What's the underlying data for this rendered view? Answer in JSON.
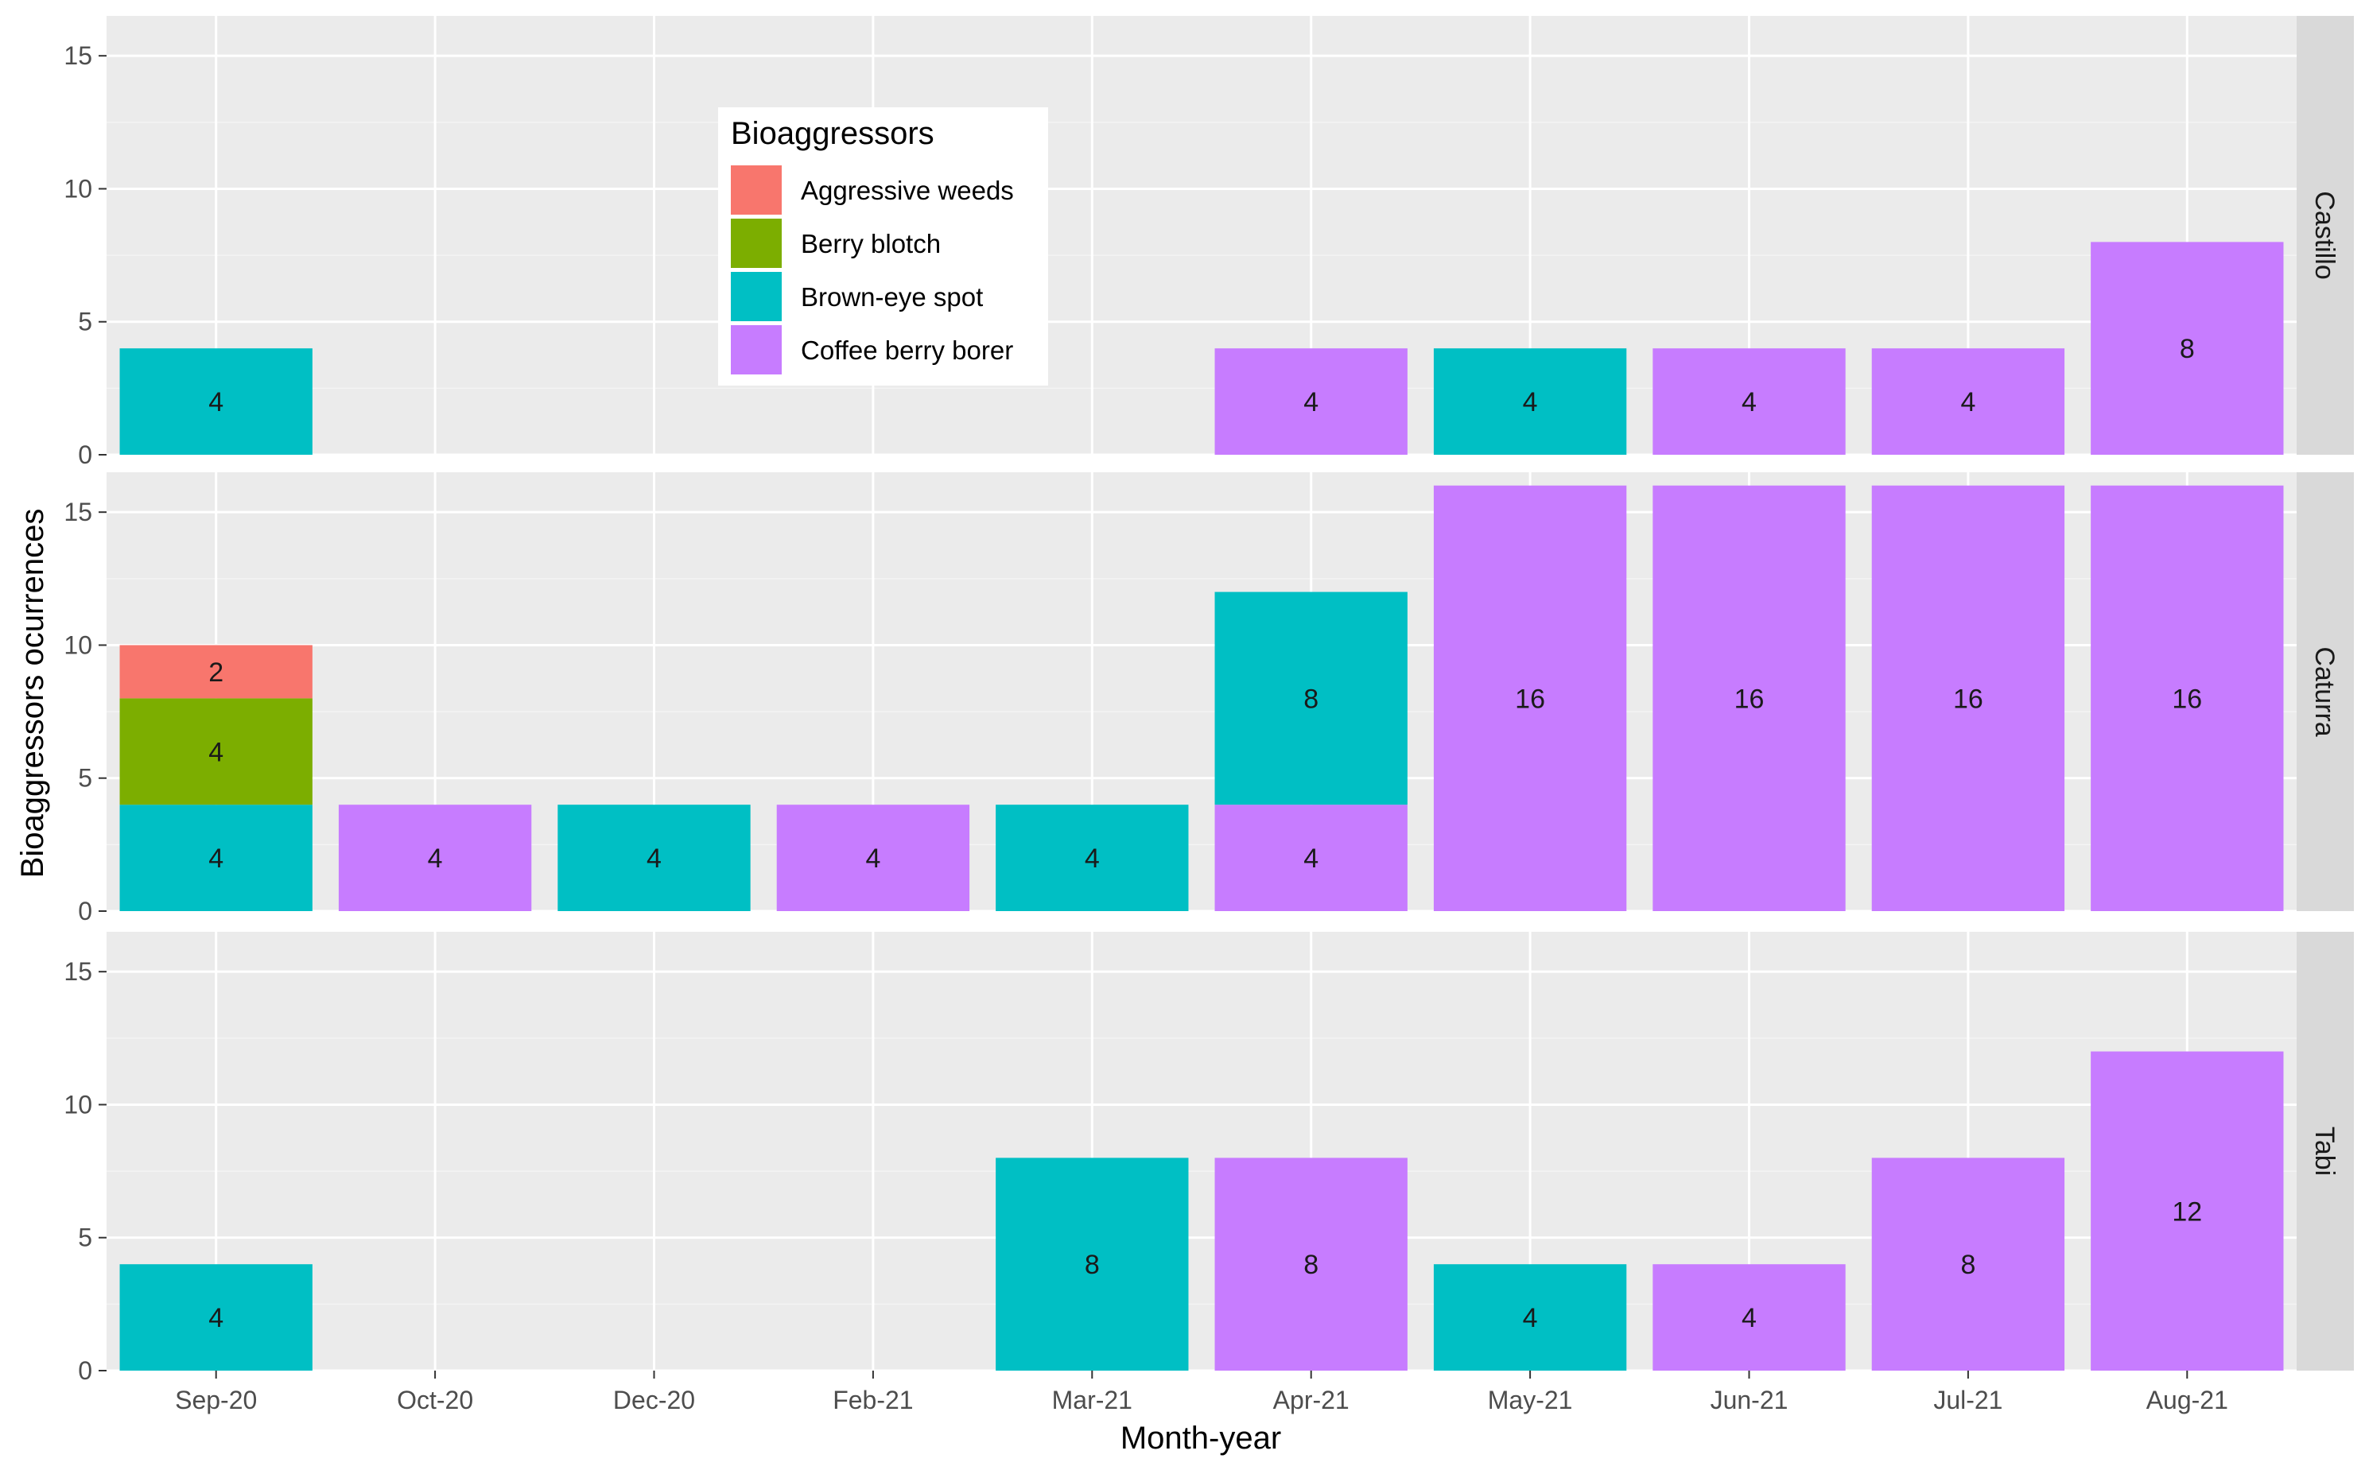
{
  "chart_data": {
    "type": "bar",
    "stacked": true,
    "facet_by": "variety",
    "xlabel": "Month-year",
    "ylabel": "Bioaggressors ocurrences",
    "ylim": [
      0,
      16.5
    ],
    "y_ticks": [
      0,
      5,
      10,
      15
    ],
    "categories": [
      "Sep-20",
      "Oct-20",
      "Dec-20",
      "Feb-21",
      "Mar-21",
      "Apr-21",
      "May-21",
      "Jun-21",
      "Jul-21",
      "Aug-21"
    ],
    "legend": {
      "title": "Bioaggressors",
      "placement": "inside-top-left of first panel",
      "entries": [
        {
          "name": "Aggressive weeds",
          "color": "#F8766D"
        },
        {
          "name": "Berry blotch",
          "color": "#7CAE00"
        },
        {
          "name": "Brown-eye spot",
          "color": "#00BFC4"
        },
        {
          "name": "Coffee berry borer",
          "color": "#C77CFF"
        }
      ]
    },
    "panels": [
      {
        "label": "Castillo",
        "bars": [
          {
            "category": "Sep-20",
            "segments": [
              {
                "series": "Brown-eye spot",
                "value": 4
              }
            ]
          },
          {
            "category": "Apr-21",
            "segments": [
              {
                "series": "Coffee berry borer",
                "value": 4
              }
            ]
          },
          {
            "category": "May-21",
            "segments": [
              {
                "series": "Brown-eye spot",
                "value": 4
              }
            ]
          },
          {
            "category": "Jun-21",
            "segments": [
              {
                "series": "Coffee berry borer",
                "value": 4
              }
            ]
          },
          {
            "category": "Jul-21",
            "segments": [
              {
                "series": "Coffee berry borer",
                "value": 4
              }
            ]
          },
          {
            "category": "Aug-21",
            "segments": [
              {
                "series": "Coffee berry borer",
                "value": 8
              }
            ]
          }
        ]
      },
      {
        "label": "Caturra",
        "bars": [
          {
            "category": "Sep-20",
            "segments": [
              {
                "series": "Brown-eye spot",
                "value": 4
              },
              {
                "series": "Berry blotch",
                "value": 4
              },
              {
                "series": "Aggressive weeds",
                "value": 2
              }
            ]
          },
          {
            "category": "Oct-20",
            "segments": [
              {
                "series": "Coffee berry borer",
                "value": 4
              }
            ]
          },
          {
            "category": "Dec-20",
            "segments": [
              {
                "series": "Brown-eye spot",
                "value": 4
              }
            ]
          },
          {
            "category": "Feb-21",
            "segments": [
              {
                "series": "Coffee berry borer",
                "value": 4
              }
            ]
          },
          {
            "category": "Mar-21",
            "segments": [
              {
                "series": "Brown-eye spot",
                "value": 4
              }
            ]
          },
          {
            "category": "Apr-21",
            "segments": [
              {
                "series": "Coffee berry borer",
                "value": 4
              },
              {
                "series": "Brown-eye spot",
                "value": 8
              }
            ]
          },
          {
            "category": "May-21",
            "segments": [
              {
                "series": "Coffee berry borer",
                "value": 16
              }
            ]
          },
          {
            "category": "Jun-21",
            "segments": [
              {
                "series": "Coffee berry borer",
                "value": 16
              }
            ]
          },
          {
            "category": "Jul-21",
            "segments": [
              {
                "series": "Coffee berry borer",
                "value": 16
              }
            ]
          },
          {
            "category": "Aug-21",
            "segments": [
              {
                "series": "Coffee berry borer",
                "value": 16
              }
            ]
          }
        ]
      },
      {
        "label": "Tabi",
        "bars": [
          {
            "category": "Sep-20",
            "segments": [
              {
                "series": "Brown-eye spot",
                "value": 4
              }
            ]
          },
          {
            "category": "Mar-21",
            "segments": [
              {
                "series": "Brown-eye spot",
                "value": 8
              }
            ]
          },
          {
            "category": "Apr-21",
            "segments": [
              {
                "series": "Coffee berry borer",
                "value": 8
              }
            ]
          },
          {
            "category": "May-21",
            "segments": [
              {
                "series": "Brown-eye spot",
                "value": 4
              }
            ]
          },
          {
            "category": "Jun-21",
            "segments": [
              {
                "series": "Coffee berry borer",
                "value": 4
              }
            ]
          },
          {
            "category": "Jul-21",
            "segments": [
              {
                "series": "Coffee berry borer",
                "value": 8
              }
            ]
          },
          {
            "category": "Aug-21",
            "segments": [
              {
                "series": "Coffee berry borer",
                "value": 12
              }
            ]
          }
        ]
      }
    ]
  }
}
